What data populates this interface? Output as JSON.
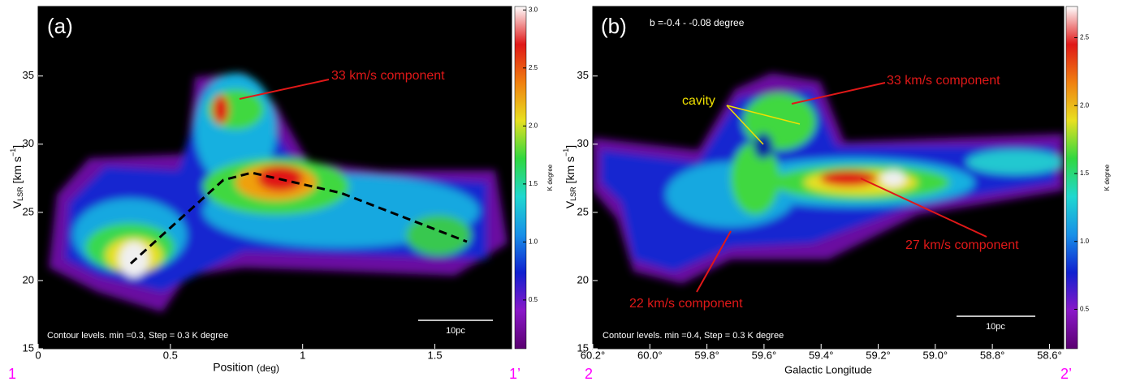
{
  "chart_data": [
    {
      "type": "heatmap",
      "panel_label": "(a)",
      "xlabel": "Position",
      "xlabel_unit": "(deg)",
      "ylabel": {
        "v": "V",
        "sub": "LSR",
        "unit": "[km s",
        "sup": "−1",
        "close": "]"
      },
      "xlim": [
        0,
        1.79
      ],
      "xticks": [
        0,
        0.5,
        1,
        1.5
      ],
      "ylim": [
        15,
        40.1
      ],
      "yticks": [
        15,
        20,
        25,
        30,
        35
      ],
      "colorbar_label": "K degree",
      "clim": [
        0.08,
        3.03
      ],
      "cticks": [
        0.5,
        {
          "value": 1.0,
          "label": "1.0"
        },
        1.5,
        {
          "value": 2.0,
          "label": "2.0"
        },
        2.5,
        {
          "value": 3.0,
          "label": "3.0"
        }
      ],
      "colormap": [
        "#5a0070",
        "#8a18c8",
        "#1020d0",
        "#1890e8",
        "#20d8d0",
        "#30d840",
        "#e8e020",
        "#f08010",
        "#e01818",
        "#ffffff"
      ],
      "annotations": [
        "33 km/s component"
      ],
      "contour_note": "Contour levels. min =0.3, Step = 0.3 K degree",
      "scale_bar": "10pc",
      "start_label": "1",
      "end_label": "1’"
    },
    {
      "type": "heatmap",
      "panel_label": "(b)",
      "subtitle": "b =-0.4 - -0.08 degree",
      "xlabel": "Galactic Longitude",
      "ylabel": {
        "v": "V",
        "sub": "LSR",
        "unit": "[km s",
        "sup": "−1",
        "close": "]"
      },
      "xlim": [
        60.2,
        58.55
      ],
      "xticks": [
        {
          "value": 60.2,
          "label": "60.2°"
        },
        {
          "value": 60.0,
          "label": "60.0°"
        },
        {
          "value": 59.8,
          "label": "59.8°"
        },
        {
          "value": 59.6,
          "label": "59.6°"
        },
        {
          "value": 59.4,
          "label": "59.4°"
        },
        {
          "value": 59.2,
          "label": "59.2°"
        },
        {
          "value": 59.0,
          "label": "59.0°"
        },
        {
          "value": 58.8,
          "label": "58.8°"
        },
        {
          "value": 58.6,
          "label": "58.6°"
        }
      ],
      "ylim": [
        15,
        40.1
      ],
      "yticks": [
        15,
        20,
        25,
        30,
        35
      ],
      "colorbar_label": "K degree",
      "clim": [
        0.21,
        2.73
      ],
      "cticks": [
        0.5,
        {
          "value": 1.0,
          "label": "1.0"
        },
        1.5,
        {
          "value": 2.0,
          "label": "2.0"
        },
        2.5
      ],
      "colormap": [
        "#5a0070",
        "#8a18c8",
        "#1020d0",
        "#1890e8",
        "#20d8d0",
        "#30d840",
        "#e8e020",
        "#f08010",
        "#e01818",
        "#ffffff"
      ],
      "annotations": [
        "33 km/s component",
        "cavity",
        "27 km/s component",
        "22 km/s component"
      ],
      "contour_note": "Contour levels. min =0.4, Step = 0.3 K degree",
      "scale_bar": "10pc",
      "start_label": "2",
      "end_label": "2’"
    }
  ]
}
